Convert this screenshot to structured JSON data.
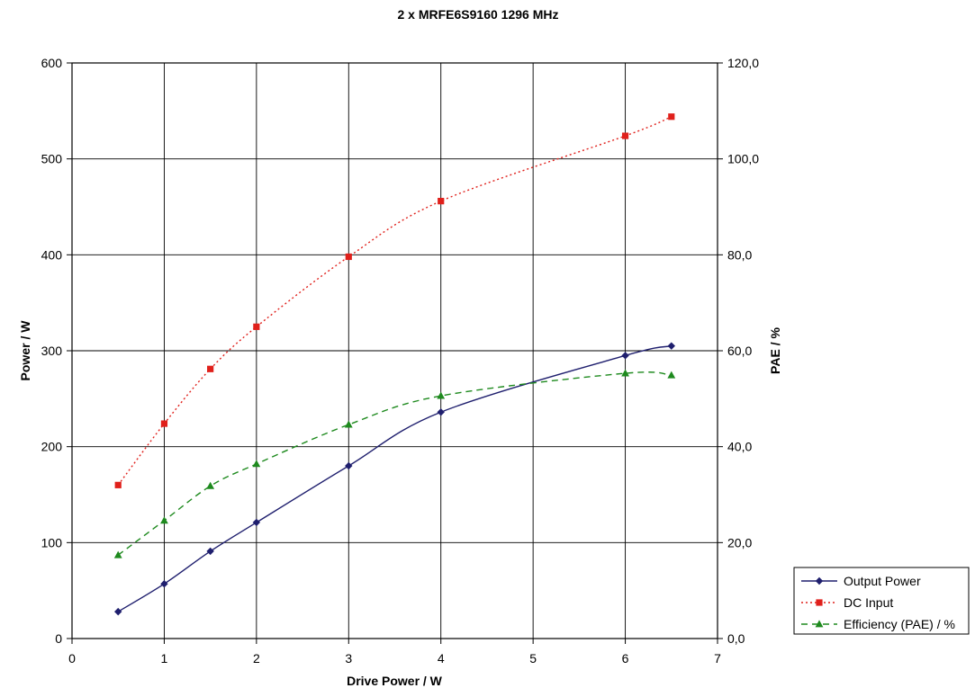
{
  "chart_data": {
    "type": "line",
    "title": "2 x MRFE6S9160  1296 MHz",
    "xlabel": "Drive Power / W",
    "ylabel_left": "Power / W",
    "ylabel_right": "PAE / %",
    "xlim": [
      0,
      7
    ],
    "ylim_left": [
      0,
      600
    ],
    "ylim_right": [
      0,
      120
    ],
    "x_ticks": [
      "0",
      "1",
      "2",
      "3",
      "4",
      "5",
      "6",
      "7"
    ],
    "y_left_ticks": [
      "0",
      "100",
      "200",
      "300",
      "400",
      "500",
      "600"
    ],
    "y_right_ticks": [
      "0,0",
      "20,0",
      "40,0",
      "60,0",
      "80,0",
      "100,0",
      "120,0"
    ],
    "grid": true,
    "legend_position": "bottom-right",
    "series": [
      {
        "name": "Output Power",
        "axis": "left",
        "color": "#1f1f6e",
        "marker": "diamond",
        "line": "solid",
        "x": [
          0.5,
          1,
          1.5,
          2,
          3,
          4,
          6,
          6.5
        ],
        "values": [
          28,
          57,
          91,
          121,
          180,
          236,
          295,
          305
        ]
      },
      {
        "name": "DC Input",
        "axis": "left",
        "color": "#e0201b",
        "marker": "square",
        "line": "dotted",
        "x": [
          0.5,
          1,
          1.5,
          2,
          3,
          4,
          6,
          6.5
        ],
        "values": [
          160,
          224,
          281,
          325,
          398,
          456,
          524,
          544
        ]
      },
      {
        "name": "Efficiency (PAE) / %",
        "axis": "right",
        "color": "#1e8a1e",
        "marker": "triangle",
        "line": "dashed",
        "x": [
          0.5,
          1,
          1.5,
          2,
          3,
          4,
          6,
          6.5
        ],
        "values": [
          17.4,
          24.6,
          31.8,
          36.4,
          44.6,
          50.6,
          55.3,
          54.9
        ]
      }
    ]
  }
}
